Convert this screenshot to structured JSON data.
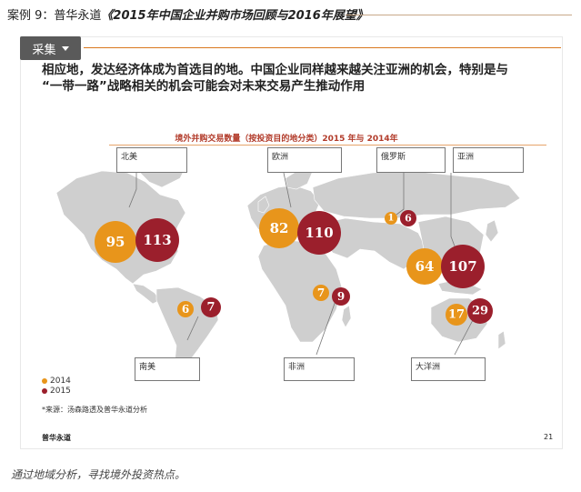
{
  "header": {
    "case_label": "案例 9：普华永道",
    "report_title": "《2015年中国企业并购市场回顾与2016年展望》"
  },
  "collect_button": {
    "label": "采集"
  },
  "slide": {
    "headline_line1": "相应地，发达经济体成为首选目的地。中国企业同样越来越关注亚洲的机会，特别是与",
    "headline_line2": "“一带一路”战略相关的机会可能会对未来交易产生推动作用",
    "chart_title": "境外并购交易数量（按投资目的地分类）2015 年与 2014年",
    "legend": [
      {
        "label": "2014",
        "color": "#e8951b"
      },
      {
        "label": "2015",
        "color": "#9b1f2c"
      }
    ],
    "source": "*来源：汤森路透及普华永道分析",
    "footer_brand": "普华永道",
    "page_number": "21"
  },
  "chart_data": {
    "type": "bubble-map",
    "title": "境外并购交易数量（按投资目的地分类）2015 年与 2014年",
    "series_names": [
      "2014",
      "2015"
    ],
    "regions": [
      {
        "name": "北美",
        "values": [
          95,
          113
        ]
      },
      {
        "name": "欧洲",
        "values": [
          82,
          110
        ]
      },
      {
        "name": "俄罗斯",
        "values": [
          1,
          6
        ]
      },
      {
        "name": "亚洲",
        "values": [
          64,
          107
        ]
      },
      {
        "name": "南美",
        "values": [
          6,
          7
        ]
      },
      {
        "name": "非洲",
        "values": [
          7,
          9
        ]
      },
      {
        "name": "大洋洲",
        "values": [
          17,
          29
        ]
      }
    ],
    "colors": {
      "2014": "#e8951b",
      "2015": "#9b1f2c",
      "land": "#cfcfcf"
    }
  },
  "caption": "通过地域分析，寻找境外投资热点。"
}
